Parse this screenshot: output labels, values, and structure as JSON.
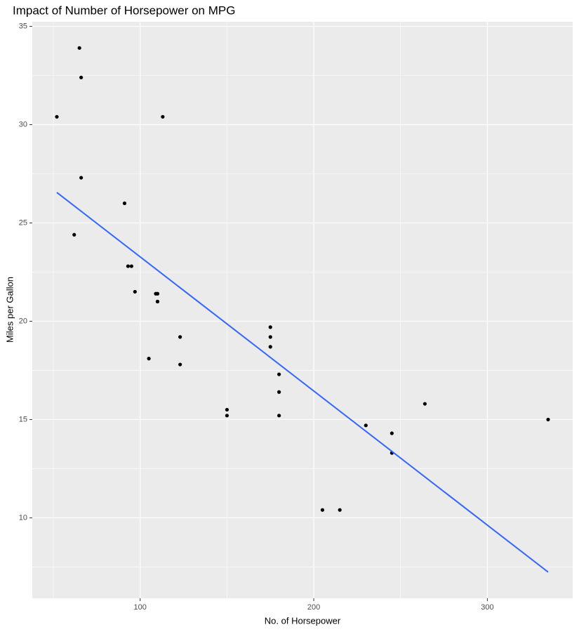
{
  "chart_data": {
    "type": "scatter",
    "title": "Impact of Number of Horsepower on MPG",
    "x_label": "No. of Horsepower",
    "y_label": "Miles per Gallon",
    "x": [
      110,
      110,
      93,
      110,
      175,
      105,
      245,
      62,
      95,
      123,
      123,
      180,
      180,
      180,
      205,
      215,
      230,
      66,
      52,
      65,
      97,
      150,
      150,
      245,
      175,
      66,
      91,
      113,
      264,
      175,
      335,
      109
    ],
    "values": [
      21,
      21,
      22.8,
      21.4,
      18.7,
      18.1,
      14.3,
      24.4,
      22.8,
      19.2,
      17.8,
      16.4,
      17.3,
      15.2,
      10.4,
      10.4,
      14.7,
      32.4,
      30.4,
      33.9,
      21.5,
      15.5,
      15.2,
      13.3,
      19.2,
      27.3,
      26,
      30.4,
      15.8,
      19.7,
      15,
      21.4
    ],
    "color": "#000000",
    "fit": {
      "x": [
        52,
        335
      ],
      "values": [
        26.55,
        7.24
      ],
      "color": "#3366ff"
    },
    "xlim": [
      37.85,
      349.15
    ],
    "ylim": [
      5.907,
      35.233
    ],
    "xticks": [
      100,
      200,
      300
    ],
    "yticks": [
      10,
      15,
      20,
      25,
      30,
      35
    ],
    "xminor": [
      50,
      150,
      250
    ],
    "yminor": [
      7.5,
      12.5,
      17.5,
      22.5,
      27.5,
      32.5
    ],
    "grid": true
  }
}
